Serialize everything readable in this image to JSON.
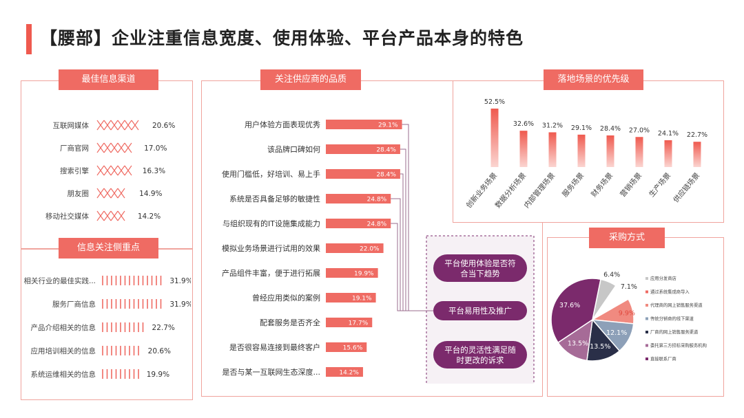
{
  "page": {
    "title": "【腰部】企业注重信息宽度、使用体验、平台产品本身的特色"
  },
  "colors": {
    "accent": "#ef6b63",
    "purple": "#7b2a6c",
    "gray_blue": "#8da0b8",
    "navy": "#2a2f48",
    "mauve": "#a66b97",
    "light_gray": "#c7c7c7",
    "salmon": "#f08a80"
  },
  "chart_data": [
    {
      "id": "channels",
      "type": "bar",
      "title": "最佳信息渠道",
      "categories": [
        "互联网媒体",
        "厂商官网",
        "搜索引擎",
        "朋友圈",
        "移动社交媒体"
      ],
      "values": [
        20.6,
        17.0,
        16.3,
        14.9,
        14.2
      ],
      "labels": [
        "20.6%",
        "17.0%",
        "16.3%",
        "14.9%",
        "14.2%"
      ]
    },
    {
      "id": "focus",
      "type": "bar",
      "title": "信息关注侧重点",
      "categories": [
        "相关行业的最佳实践...",
        "服务厂商信息",
        "产品介绍相关的信息",
        "应用培训相关的信息",
        "系统运维相关的信息"
      ],
      "values": [
        31.9,
        31.9,
        22.7,
        20.6,
        19.9
      ],
      "labels": [
        "31.9%",
        "31.9%",
        "22.7%",
        "20.6%",
        "19.9%"
      ]
    },
    {
      "id": "quality",
      "type": "bar",
      "title": "关注供应商的品质",
      "categories": [
        "用户体验方面表现优秀",
        "该品牌口碑如何",
        "使用门槛低，好培训、易上手",
        "系统是否具备足够的敏捷性",
        "与组织现有的IT设施集成能力",
        "模拟业务场景进行试用的效果",
        "产品组件丰富，便于进行拓展",
        "曾经应用类似的案例",
        "配套服务是否齐全",
        "是否很容易连接到最终客户",
        "是否与某一互联网生态深度..."
      ],
      "values": [
        29.1,
        28.4,
        28.4,
        24.8,
        24.8,
        22.0,
        19.9,
        19.1,
        17.7,
        15.6,
        14.2
      ],
      "labels": [
        "29.1%",
        "28.4%",
        "28.4%",
        "24.8%",
        "24.8%",
        "22.0%",
        "19.9%",
        "19.1%",
        "17.7%",
        "15.6%",
        "14.2%"
      ],
      "annotations": [
        "平台使用体验是否符合当下趋势",
        "平台易用性及推广",
        "平台的灵活性满足随时更改的诉求"
      ]
    },
    {
      "id": "scenarios",
      "type": "bar",
      "title": "落地场景的优先级",
      "categories": [
        "创新业务场景",
        "数据分析场景",
        "内部管理场景",
        "服务场景",
        "财务场景",
        "营销场景",
        "生产场景",
        "供应链场景"
      ],
      "values": [
        52.5,
        32.6,
        31.2,
        29.1,
        28.4,
        27.0,
        24.1,
        22.7
      ],
      "labels": [
        "52.5%",
        "32.6%",
        "31.2%",
        "29.1%",
        "28.4%",
        "27.0%",
        "24.1%",
        "22.7%"
      ]
    },
    {
      "id": "purchase",
      "type": "pie",
      "title": "采购方式",
      "categories": [
        "应用分发商店",
        "通过系统集成商导入",
        "代理商的网上销售服务渠道",
        "传统分销商的线下渠道",
        "厂商的网上销售服务渠道",
        "委托第三方招标采购服务机构",
        "直接联系厂商"
      ],
      "values": [
        6.4,
        7.1,
        9.9,
        12.1,
        13.5,
        13.5,
        37.6
      ],
      "labels": [
        "6.4%",
        "7.1%",
        "9.9%",
        "12.1%",
        "13.5%",
        "13.5%",
        "37.6%"
      ],
      "colors": [
        "#c7c7c7",
        "#ffffff",
        "#f08a80",
        "#8da0b8",
        "#2a2f48",
        "#a66b97",
        "#7b2a6c"
      ]
    }
  ]
}
